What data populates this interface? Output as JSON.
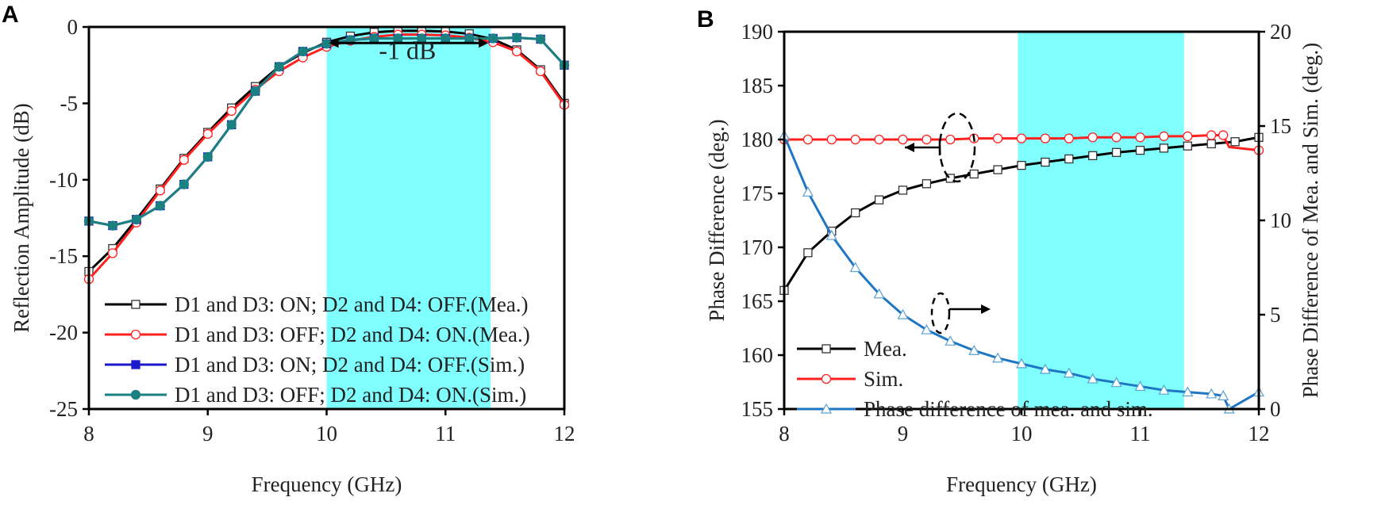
{
  "chart_data": [
    {
      "type": "line",
      "panel_label": "A",
      "xlabel": "Frequency (GHz)",
      "ylabel": "Reflection Amplitude (dB)",
      "xlim": [
        8,
        12
      ],
      "ylim": [
        -25,
        0
      ],
      "xticks": [
        8,
        9,
        10,
        11,
        12
      ],
      "yticks": [
        0,
        -5,
        -10,
        -15,
        -20,
        -25
      ],
      "shaded_band": [
        10,
        11.38
      ],
      "annotation": "-1 dB",
      "legend_position": "bottom-left",
      "x": [
        8,
        8.2,
        8.4,
        8.6,
        8.8,
        9,
        9.2,
        9.4,
        9.6,
        9.8,
        10,
        10.2,
        10.4,
        10.6,
        10.8,
        11,
        11.2,
        11.4,
        11.6,
        11.8,
        12
      ],
      "series": [
        {
          "name": "D1 and D3: ON; D2 and D4: OFF.(Mea.)",
          "color": "#000000",
          "marker": "square",
          "values": [
            -16,
            -14.5,
            -12.6,
            -10.6,
            -8.6,
            -6.9,
            -5.3,
            -3.9,
            -2.6,
            -1.7,
            -1.0,
            -0.6,
            -0.35,
            -0.25,
            -0.25,
            -0.3,
            -0.45,
            -0.8,
            -1.5,
            -2.8,
            -5.0
          ]
        },
        {
          "name": "D1 and D3: OFF; D2 and D4: ON.(Mea.)",
          "color": "#ff2020",
          "marker": "circle",
          "values": [
            -16.5,
            -14.8,
            -12.8,
            -10.7,
            -8.7,
            -7.0,
            -5.5,
            -4.1,
            -2.9,
            -2.0,
            -1.3,
            -0.9,
            -0.65,
            -0.5,
            -0.5,
            -0.55,
            -0.7,
            -1.0,
            -1.6,
            -2.9,
            -5.1
          ]
        },
        {
          "name": "D1 and D3: ON; D2 and D4: OFF.(Sim.)",
          "color": "#1a1acc",
          "marker": "filled-square",
          "values": [
            -12.7,
            -13.0,
            -12.6,
            -11.7,
            -10.3,
            -8.5,
            -6.4,
            -4.2,
            -2.6,
            -1.6,
            -1.1,
            -0.85,
            -0.75,
            -0.75,
            -0.75,
            -0.75,
            -0.75,
            -0.75,
            -0.7,
            -0.8,
            -2.5
          ]
        },
        {
          "name": "D1 and D3: OFF; D2 and D4: ON.(Sim.)",
          "color": "#1b8080",
          "marker": "filled-circle",
          "values": [
            -12.7,
            -13.0,
            -12.6,
            -11.7,
            -10.3,
            -8.5,
            -6.4,
            -4.2,
            -2.6,
            -1.6,
            -1.1,
            -0.85,
            -0.75,
            -0.75,
            -0.75,
            -0.75,
            -0.75,
            -0.75,
            -0.7,
            -0.8,
            -2.5
          ]
        }
      ]
    },
    {
      "type": "line",
      "panel_label": "B",
      "xlabel": "Frequency (GHz)",
      "ylabel": "Phase Difference (deg.)",
      "y2label": "Phase Difference of Mea. and Sim. (deg.)",
      "xlim": [
        8,
        12
      ],
      "ylim": [
        155,
        190
      ],
      "y2lim": [
        0,
        20
      ],
      "xticks": [
        8,
        9,
        10,
        11,
        12
      ],
      "yticks": [
        155,
        160,
        165,
        170,
        175,
        180,
        185,
        190
      ],
      "y2ticks": [
        0,
        5,
        10,
        15,
        20
      ],
      "shaded_band": [
        9.97,
        11.37
      ],
      "legend_position": "bottom-left",
      "series": [
        {
          "name": "Mea.",
          "color": "#000000",
          "marker": "square",
          "axis": "left",
          "x": [
            8,
            8.2,
            8.4,
            8.6,
            8.8,
            9,
            9.2,
            9.4,
            9.6,
            9.8,
            10,
            10.2,
            10.4,
            10.6,
            10.8,
            11,
            11.2,
            11.4,
            11.6,
            11.8,
            12
          ],
          "values": [
            166,
            169.5,
            171.5,
            173.2,
            174.4,
            175.3,
            175.9,
            176.4,
            176.8,
            177.2,
            177.6,
            177.9,
            178.2,
            178.5,
            178.8,
            179.0,
            179.2,
            179.4,
            179.6,
            179.8,
            180.2
          ]
        },
        {
          "name": "Sim.",
          "color": "#ff2020",
          "marker": "circle",
          "axis": "left",
          "x": [
            8,
            8.2,
            8.4,
            8.6,
            8.8,
            9,
            9.2,
            9.4,
            9.6,
            9.8,
            10,
            10.2,
            10.4,
            10.6,
            10.8,
            11,
            11.2,
            11.4,
            11.6,
            11.7,
            11.75,
            12
          ],
          "values": [
            180,
            180,
            180,
            180,
            180,
            180,
            180,
            180,
            180.1,
            180.1,
            180.1,
            180.1,
            180.1,
            180.2,
            180.2,
            180.2,
            180.3,
            180.3,
            180.4,
            180.4,
            179.3,
            179.0
          ]
        },
        {
          "name": "Phase difference of mea. and sim.",
          "color": "#1f77c4",
          "marker": "triangle",
          "axis": "right",
          "x": [
            8,
            8.2,
            8.4,
            8.6,
            8.8,
            9,
            9.2,
            9.4,
            9.6,
            9.8,
            10,
            10.2,
            10.4,
            10.6,
            10.8,
            11,
            11.2,
            11.4,
            11.6,
            11.7,
            11.75,
            12
          ],
          "values": [
            14.5,
            11.5,
            9.2,
            7.5,
            6.1,
            5.0,
            4.2,
            3.6,
            3.1,
            2.7,
            2.4,
            2.1,
            1.9,
            1.6,
            1.4,
            1.2,
            1.0,
            0.9,
            0.8,
            0.7,
            0,
            0.9
          ]
        }
      ]
    }
  ]
}
